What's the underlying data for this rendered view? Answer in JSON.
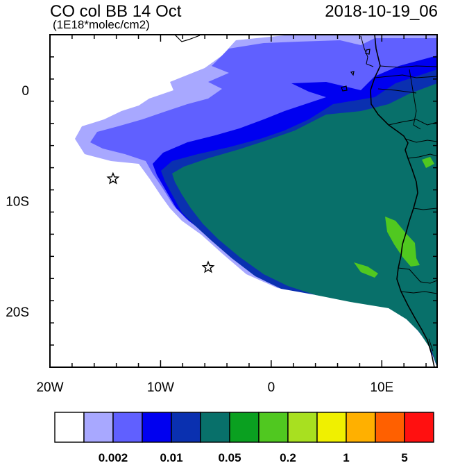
{
  "title": "CO col BB 14 Oct",
  "timestamp": "2018-10-19_06",
  "units": "(1E18*molec/cm2)",
  "map": {
    "lon_range": [
      -20,
      15
    ],
    "lat_range": [
      -25,
      5
    ],
    "x_ticks": [
      {
        "value": -20,
        "label": "20W"
      },
      {
        "value": -10,
        "label": "10W"
      },
      {
        "value": 0,
        "label": "0"
      },
      {
        "value": 10,
        "label": "10E"
      }
    ],
    "y_ticks": [
      {
        "value": 0,
        "label": "0"
      },
      {
        "value": -10,
        "label": "10S"
      },
      {
        "value": -20,
        "label": "20S"
      }
    ],
    "markers": [
      {
        "name": "star",
        "lon": -14.3,
        "lat": -8.0
      },
      {
        "name": "star",
        "lon": -5.7,
        "lat": -16.0
      }
    ]
  },
  "colorbar": {
    "colors": [
      "#ffffff",
      "#a8a8ff",
      "#6060ff",
      "#0000f0",
      "#0a30b0",
      "#08706a",
      "#0aa020",
      "#50c820",
      "#a8e020",
      "#f0f000",
      "#ffb000",
      "#ff6000",
      "#ff1010"
    ],
    "labels": [
      {
        "after_box": 2,
        "text": "0.002"
      },
      {
        "after_box": 4,
        "text": "0.01"
      },
      {
        "after_box": 6,
        "text": "0.05"
      },
      {
        "after_box": 8,
        "text": "0.2"
      },
      {
        "after_box": 10,
        "text": "1"
      },
      {
        "after_box": 12,
        "text": "5"
      }
    ]
  },
  "colors": {
    "c_very_light": "#a8a8ff",
    "c_light": "#6060ff",
    "c_blue": "#0000f0",
    "c_dark_blue": "#0a30b0",
    "c_teal": "#08706a",
    "c_green": "#50c820"
  }
}
